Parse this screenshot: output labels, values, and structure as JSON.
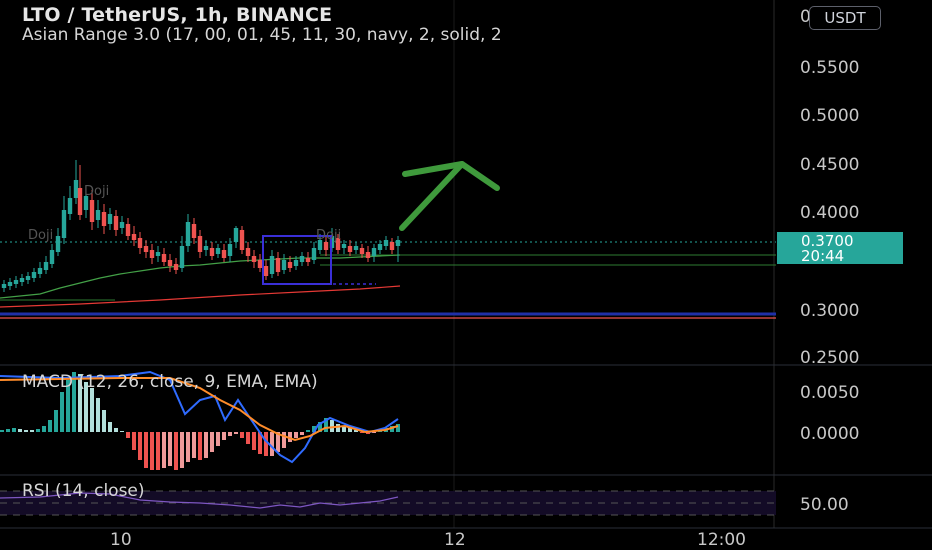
{
  "header": {
    "symbol_title": "LTO / TetherUS, 1h, BINANCE",
    "indicator_label": "Asian Range 3.0 (17, 00, 01, 45, 11, 30, navy, 2, solid, 2"
  },
  "currency_button": "USDT",
  "price_scale": {
    "top_partial": "0",
    "labels": [
      "0.5500",
      "0.5000",
      "0.4500",
      "0.4000",
      "0.3000",
      "0.2500"
    ]
  },
  "current_price": {
    "value": "0.3700",
    "countdown": "20:44",
    "color": "#26a69a"
  },
  "chart_annotations": {
    "doji_1": "Doji",
    "doji_2": "Doji",
    "doji_3": "Doji"
  },
  "macd": {
    "label": "MACD (12, 26, close, 9, EMA, EMA)",
    "scale_labels": [
      "0.0050",
      "0.0000"
    ]
  },
  "rsi": {
    "label": "RSI (14, close)",
    "scale_labels": [
      "50.00"
    ]
  },
  "time_axis": {
    "labels": [
      "10",
      "12",
      "12:00"
    ]
  },
  "colors": {
    "up": "#26a69a",
    "down": "#ef5350",
    "arrow": "#3f9a3c",
    "box": "#3a2fd8",
    "macd_line": "#2f6bff",
    "signal_line": "#ff8c2a",
    "rsi_line": "#7e57c2"
  }
}
